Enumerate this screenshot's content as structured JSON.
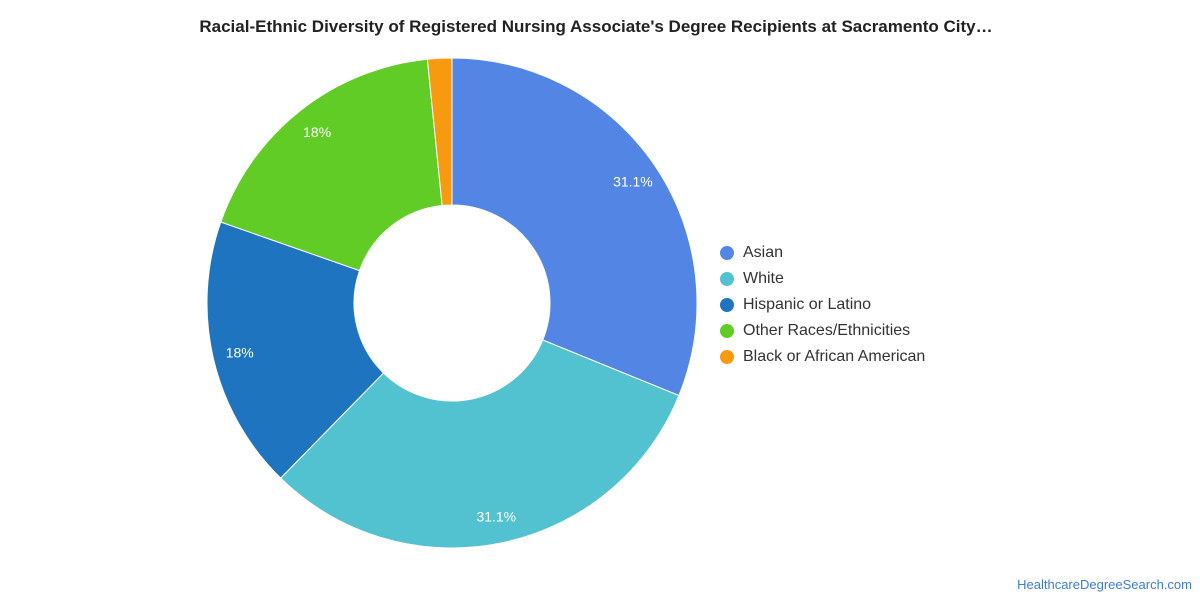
{
  "title": "Racial-Ethnic Diversity of Registered Nursing Associate's Degree Recipients at Sacramento City…",
  "source_link": "HealthcareDegreeSearch.com",
  "chart_data": {
    "type": "pie",
    "donut": true,
    "legend_position": "right",
    "slices": [
      {
        "name": "Asian",
        "value": 31.1,
        "label": "31.1%",
        "color": "#5386e4"
      },
      {
        "name": "White",
        "value": 31.1,
        "label": "31.1%",
        "color": "#52c1d0"
      },
      {
        "name": "Hispanic or Latino",
        "value": 18,
        "label": "18%",
        "color": "#1f74bf"
      },
      {
        "name": "Other Races/Ethnicities",
        "value": 18,
        "label": "18%",
        "color": "#62cc26"
      },
      {
        "name": "Black or African American",
        "value": 1.6,
        "label": "",
        "color": "#f79a10"
      }
    ]
  }
}
